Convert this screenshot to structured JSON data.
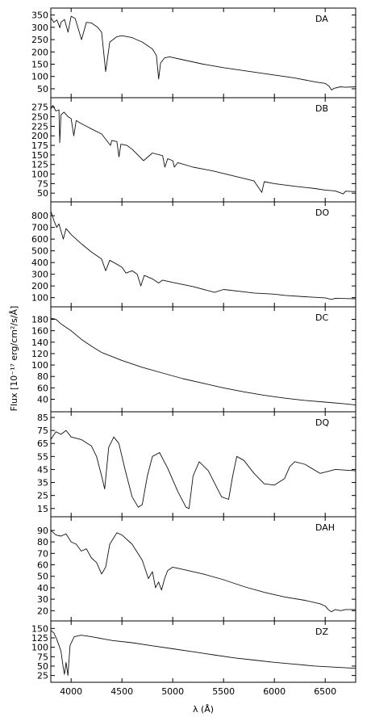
{
  "chart_data": {
    "type": "line",
    "xlabel": "λ (Å)",
    "ylabel": "Flux [10⁻¹⁷ erg/cm²/s/Å]",
    "xlim": [
      3800,
      6800
    ],
    "xticks": [
      4000,
      4500,
      5000,
      5500,
      6000,
      6500
    ],
    "grid": false,
    "panels": [
      {
        "label": "DA",
        "ylim": [
          40,
          352
        ],
        "yticks": [
          50,
          100,
          150,
          200,
          250,
          300,
          350
        ],
        "x": [
          3800,
          3830,
          3860,
          3889,
          3900,
          3935,
          3970,
          4000,
          4040,
          4102,
          4150,
          4200,
          4260,
          4300,
          4340,
          4380,
          4450,
          4500,
          4600,
          4700,
          4800,
          4840,
          4861,
          4880,
          4920,
          4970,
          5100,
          5300,
          5500,
          5800,
          6000,
          6200,
          6400,
          6500,
          6540,
          6563,
          6590,
          6650,
          6700,
          6800
        ],
        "y": [
          340,
          320,
          330,
          298,
          320,
          332,
          280,
          345,
          336,
          250,
          320,
          318,
          300,
          280,
          120,
          240,
          262,
          266,
          258,
          240,
          212,
          185,
          90,
          155,
          176,
          180,
          168,
          150,
          136,
          118,
          106,
          94,
          78,
          72,
          60,
          45,
          52,
          58,
          56,
          58
        ]
      },
      {
        "label": "DB",
        "ylim": [
          42,
          285
        ],
        "yticks": [
          50,
          75,
          100,
          125,
          150,
          175,
          200,
          225,
          250,
          275
        ],
        "x": [
          3800,
          3820,
          3850,
          3880,
          3888,
          3900,
          3930,
          3970,
          4000,
          4026,
          4050,
          4100,
          4150,
          4200,
          4300,
          4387,
          4400,
          4450,
          4471,
          4490,
          4550,
          4600,
          4713,
          4800,
          4900,
          4922,
          4950,
          5000,
          5016,
          5050,
          5200,
          5400,
          5600,
          5800,
          5876,
          5900,
          6000,
          6200,
          6400,
          6500,
          6600,
          6678,
          6700,
          6800
        ],
        "y": [
          270,
          280,
          265,
          268,
          182,
          255,
          262,
          250,
          245,
          200,
          240,
          232,
          225,
          218,
          205,
          175,
          188,
          185,
          145,
          178,
          175,
          165,
          135,
          155,
          148,
          118,
          140,
          135,
          118,
          130,
          118,
          108,
          95,
          82,
          52,
          80,
          75,
          68,
          62,
          58,
          56,
          48,
          55,
          54
        ]
      },
      {
        "label": "DO",
        "ylim": [
          70,
          870
        ],
        "yticks": [
          100,
          200,
          300,
          400,
          500,
          600,
          700,
          800
        ],
        "x": [
          3800,
          3830,
          3858,
          3880,
          3923,
          3950,
          4000,
          4100,
          4200,
          4300,
          4340,
          4380,
          4500,
          4540,
          4600,
          4650,
          4686,
          4720,
          4800,
          4861,
          4900,
          5000,
          5200,
          5412,
          5500,
          5700,
          5800,
          6000,
          6100,
          6300,
          6500,
          6560,
          6600,
          6800
        ],
        "y": [
          840,
          760,
          700,
          730,
          600,
          690,
          640,
          560,
          490,
          430,
          330,
          420,
          360,
          310,
          330,
          300,
          200,
          290,
          260,
          225,
          250,
          230,
          195,
          145,
          170,
          150,
          140,
          130,
          120,
          108,
          98,
          85,
          95,
          90
        ]
      },
      {
        "label": "DC",
        "ylim": [
          28,
          192
        ],
        "yticks": [
          40,
          60,
          80,
          100,
          120,
          140,
          160,
          180
        ],
        "x": [
          3800,
          3850,
          3900,
          4000,
          4100,
          4200,
          4300,
          4500,
          4700,
          4900,
          5100,
          5300,
          5500,
          5700,
          5900,
          6100,
          6300,
          6500,
          6700,
          6800
        ],
        "y": [
          182,
          180,
          172,
          160,
          145,
          133,
          122,
          108,
          96,
          86,
          76,
          68,
          60,
          53,
          47,
          42,
          38,
          35,
          32,
          30
        ]
      },
      {
        "label": "DQ",
        "ylim": [
          13,
          85
        ],
        "yticks": [
          15,
          25,
          35,
          45,
          55,
          65,
          75,
          85
        ],
        "x": [
          3800,
          3850,
          3900,
          3950,
          4000,
          4100,
          4200,
          4250,
          4300,
          4330,
          4370,
          4420,
          4470,
          4530,
          4600,
          4660,
          4700,
          4750,
          4800,
          4870,
          4950,
          5050,
          5130,
          5160,
          5200,
          5260,
          5350,
          5480,
          5550,
          5590,
          5630,
          5700,
          5800,
          5900,
          6000,
          6100,
          6150,
          6200,
          6300,
          6450,
          6600,
          6800
        ],
        "y": [
          68,
          74,
          72,
          75,
          70,
          68,
          63,
          55,
          40,
          30,
          62,
          70,
          65,
          45,
          24,
          16,
          18,
          40,
          55,
          58,
          46,
          28,
          16,
          15,
          40,
          51,
          44,
          24,
          22,
          40,
          55,
          52,
          42,
          34,
          33,
          38,
          47,
          51,
          49,
          42,
          45,
          44
        ]
      },
      {
        "label": "DAH",
        "ylim": [
          16,
          97
        ],
        "yticks": [
          20,
          30,
          40,
          50,
          60,
          70,
          80,
          90
        ],
        "x": [
          3800,
          3850,
          3900,
          3950,
          4000,
          4050,
          4100,
          4150,
          4200,
          4250,
          4300,
          4340,
          4380,
          4450,
          4500,
          4600,
          4700,
          4760,
          4800,
          4830,
          4860,
          4890,
          4920,
          4950,
          5000,
          5100,
          5300,
          5500,
          5700,
          5900,
          6100,
          6300,
          6450,
          6500,
          6530,
          6560,
          6600,
          6650,
          6700,
          6800
        ],
        "y": [
          90,
          86,
          85,
          87,
          80,
          78,
          72,
          74,
          66,
          62,
          52,
          58,
          78,
          88,
          86,
          78,
          64,
          48,
          54,
          40,
          45,
          38,
          48,
          55,
          58,
          56,
          52,
          47,
          41,
          36,
          32,
          29,
          26,
          24,
          21,
          19,
          21,
          20,
          21,
          21
        ]
      },
      {
        "label": "DZ",
        "ylim": [
          22,
          155
        ],
        "yticks": [
          25,
          50,
          75,
          100,
          125,
          150
        ],
        "x": [
          3800,
          3830,
          3860,
          3900,
          3920,
          3934,
          3950,
          3968,
          3990,
          4030,
          4100,
          4200,
          4400,
          4600,
          4800,
          5000,
          5200,
          5400,
          5600,
          5800,
          6000,
          6200,
          6400,
          6600,
          6800
        ],
        "y": [
          145,
          138,
          120,
          90,
          50,
          28,
          60,
          25,
          105,
          128,
          132,
          128,
          118,
          112,
          104,
          96,
          88,
          80,
          72,
          66,
          60,
          55,
          50,
          47,
          44
        ]
      }
    ]
  }
}
